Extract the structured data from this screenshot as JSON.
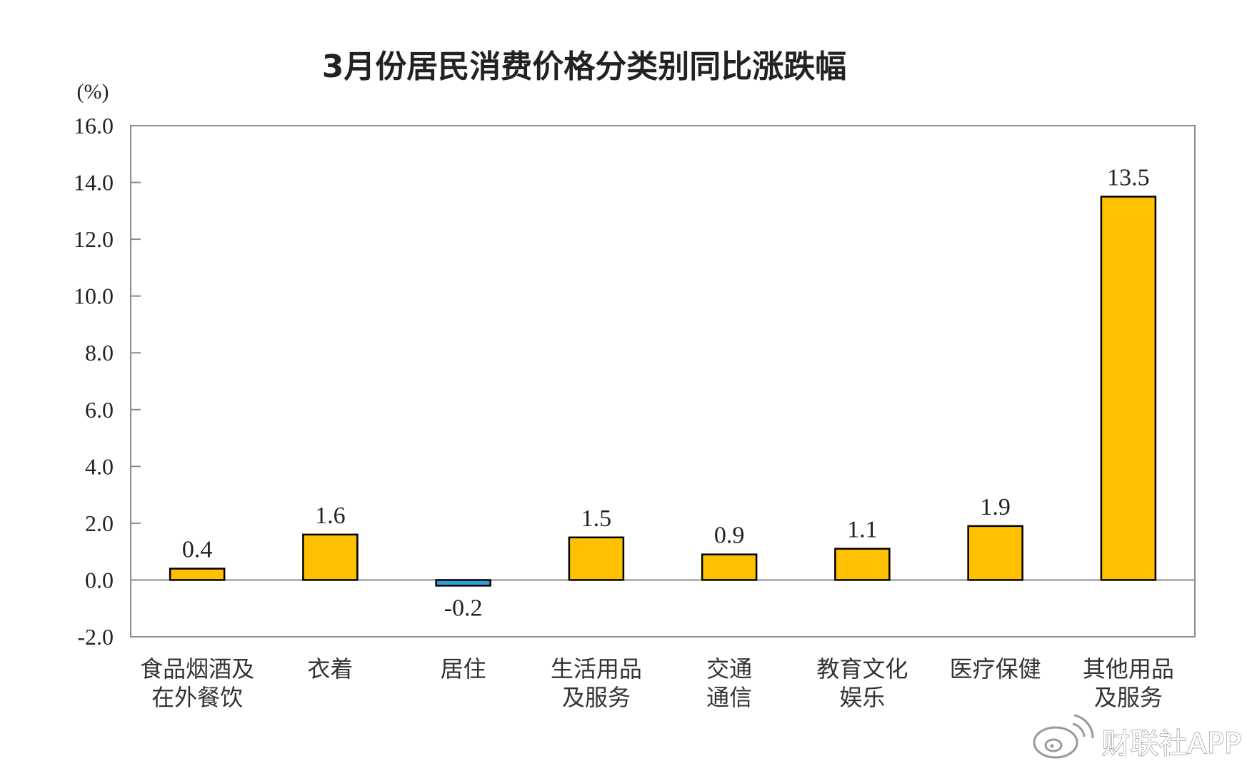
{
  "chart_data": {
    "type": "bar",
    "title": "3月份居民消费价格分类别同比涨跌幅",
    "unit": "(%)",
    "categories": [
      [
        "食品烟酒及",
        "在外餐饮"
      ],
      [
        "衣着"
      ],
      [
        "居住"
      ],
      [
        "生活用品",
        "及服务"
      ],
      [
        "交通",
        "通信"
      ],
      [
        "教育文化",
        "娱乐"
      ],
      [
        "医疗保健"
      ],
      [
        "其他用品",
        "及服务"
      ]
    ],
    "values": [
      0.4,
      1.6,
      -0.2,
      1.5,
      0.9,
      1.1,
      1.9,
      13.5
    ],
    "value_labels": [
      "0.4",
      "1.6",
      "-0.2",
      "1.5",
      "0.9",
      "1.1",
      "1.9",
      "13.5"
    ],
    "ylim": [
      -2.0,
      16.0
    ],
    "y_ticks": [
      "-2.0",
      "0.0",
      "2.0",
      "4.0",
      "6.0",
      "8.0",
      "10.0",
      "12.0",
      "14.0",
      "16.0"
    ],
    "grid": false,
    "legend": "none",
    "colors": {
      "positive": "#FFC000",
      "negative": "#2E9FD8",
      "bar_outline": "#000000",
      "frame": "#8c8c8c"
    }
  },
  "watermark": {
    "text": "财联社APP",
    "icon": "weibo-logo-icon"
  }
}
